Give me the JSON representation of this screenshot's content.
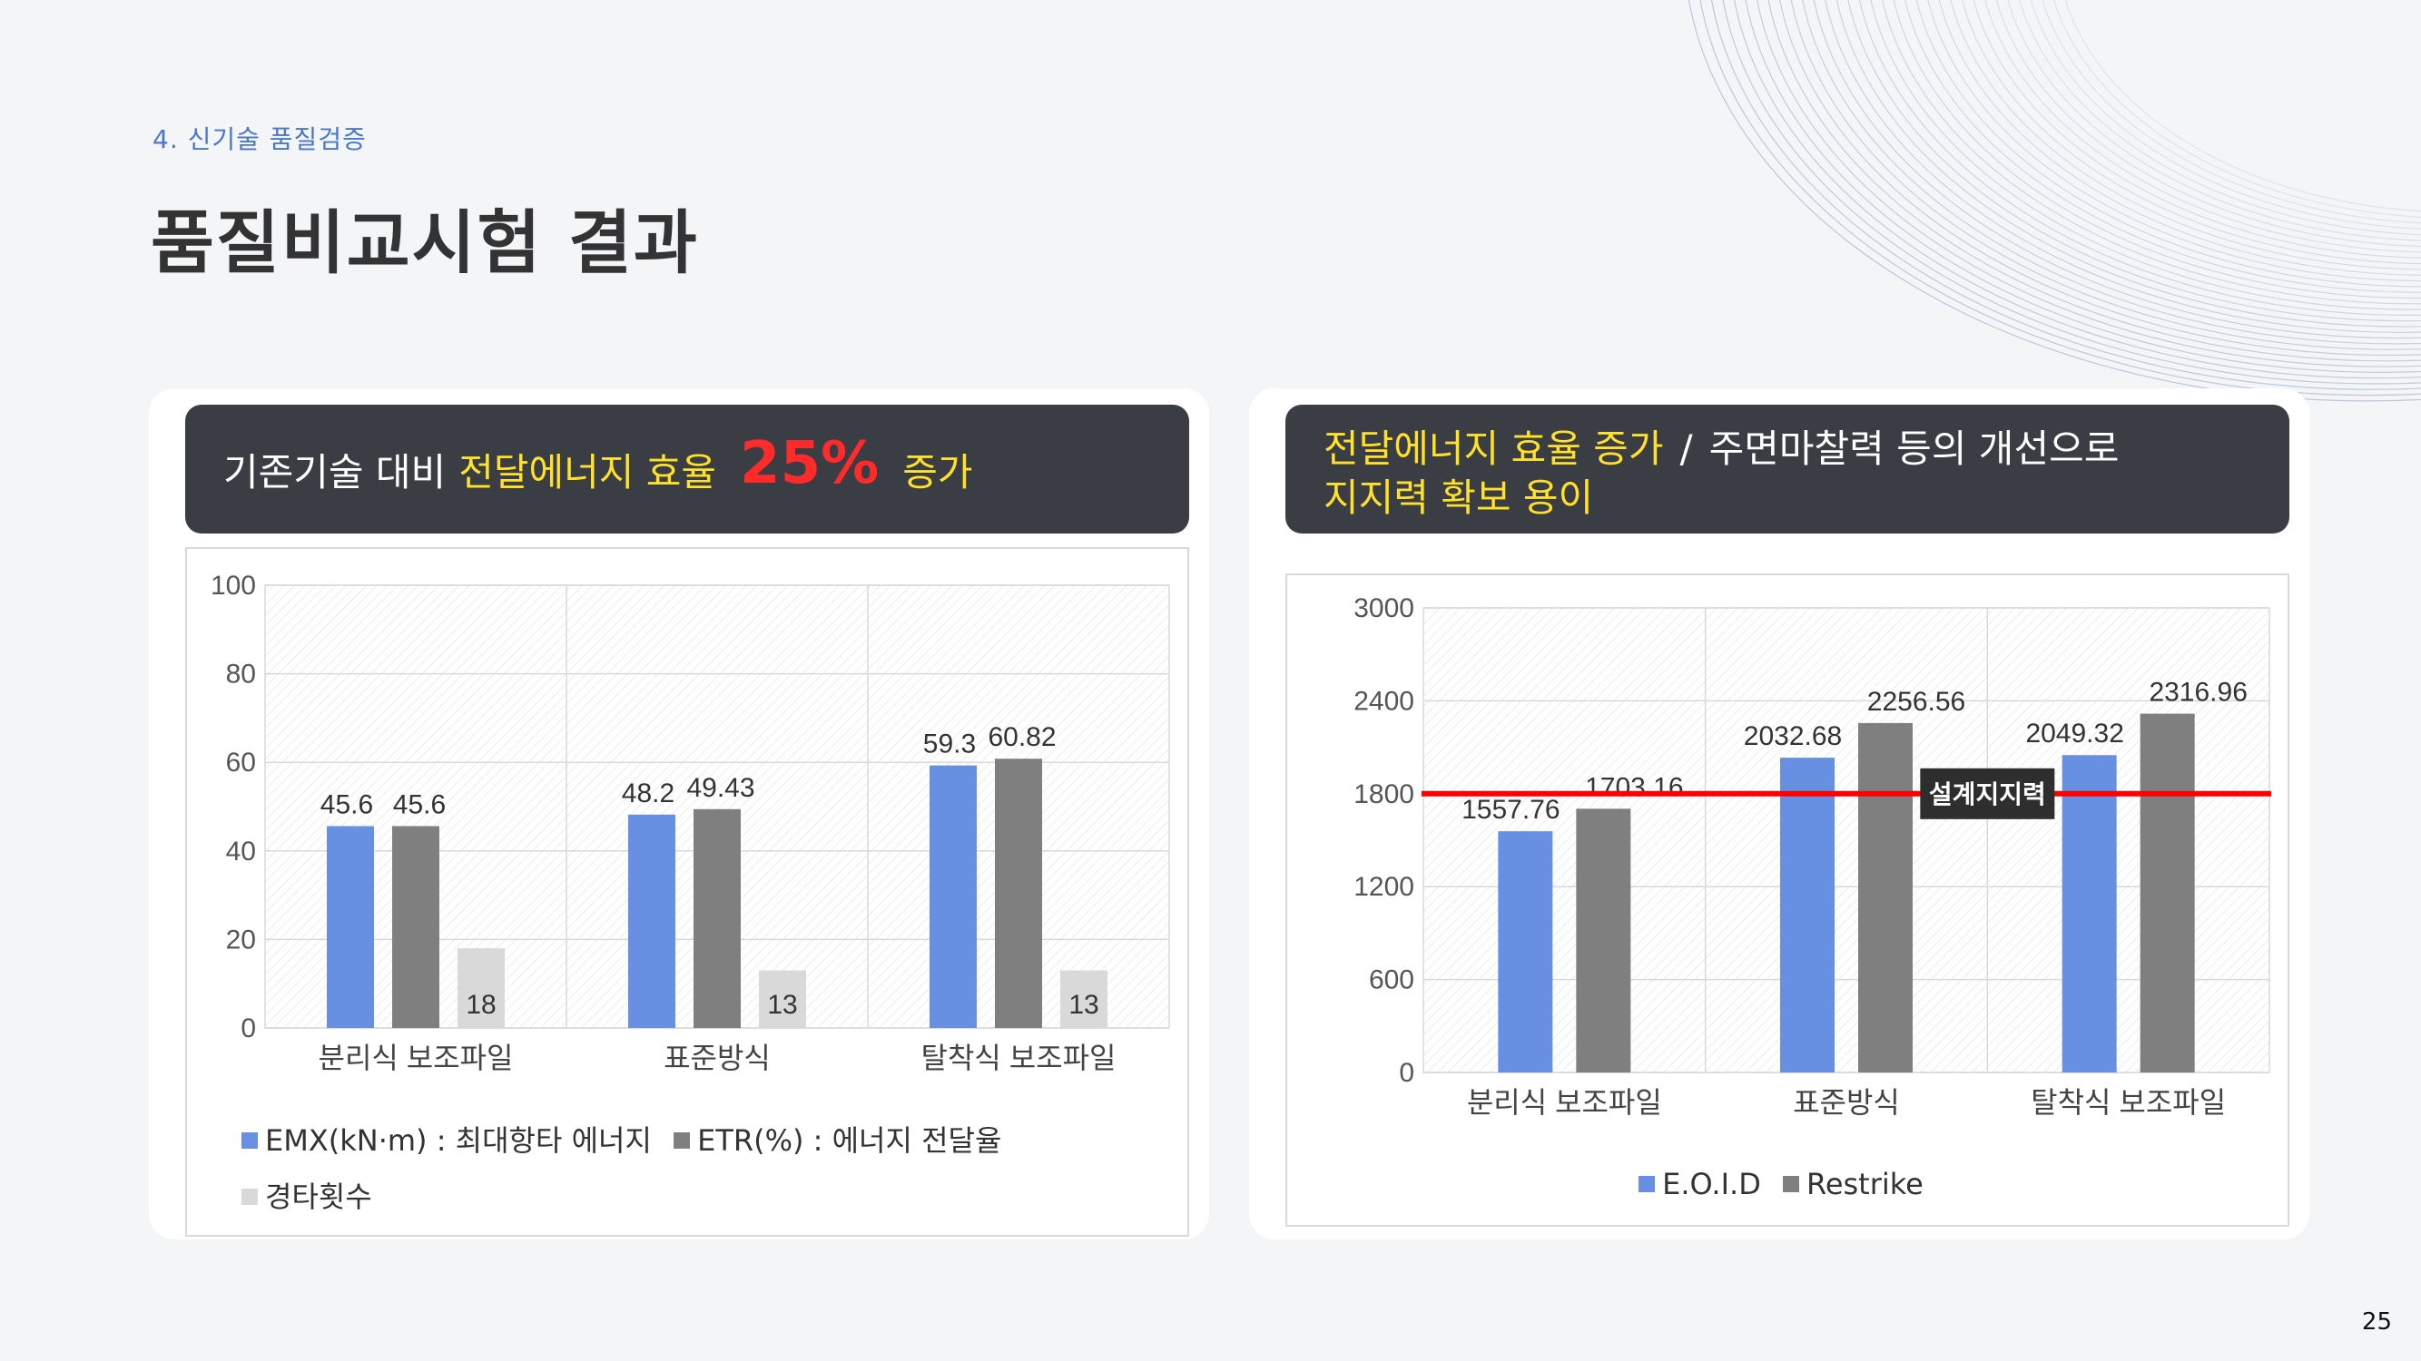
{
  "header": {
    "section": "4.  신기술 품질검증",
    "title": "품질비교시험 결과"
  },
  "page_number": "25",
  "left_card": {
    "banner": {
      "prefix": "기존기술 대비",
      "highlight": "전달에너지 효율",
      "big_value": "25%",
      "suffix": "증가"
    }
  },
  "right_card": {
    "banner": {
      "line1_highlight": "전달에너지 효율 증가",
      "separator": "/",
      "line1_rest": "주면마찰력 등의 개선으로",
      "line2_highlight": "지지력 확보 용이"
    }
  },
  "colors": {
    "blue": "#6790e2",
    "gray": "#7f7f7f",
    "light": "#d9d9d9",
    "red": "#ff0000",
    "banner_bg": "#3a3d44",
    "accent_yellow": "#ffe02a"
  },
  "chart_data": [
    {
      "type": "bar",
      "categories": [
        "분리식 보조파일",
        "표준방식",
        "탈착식 보조파일"
      ],
      "series": [
        {
          "name": "EMX(kN·m) :  최대항타 에너지",
          "values": [
            45.6,
            48.2,
            59.3
          ],
          "color": "#6790e2"
        },
        {
          "name": "ETR(%) :  에너지 전달율",
          "values": [
            45.6,
            49.43,
            60.82
          ],
          "color": "#7f7f7f"
        },
        {
          "name": "경타횟수",
          "values": [
            18,
            13,
            13
          ],
          "color": "#d9d9d9"
        }
      ],
      "data_labels": [
        [
          "45.6",
          "48.2",
          "59.3"
        ],
        [
          "45.6",
          "49.43",
          "60.82"
        ],
        [
          "18",
          "13",
          "13"
        ]
      ],
      "ylim": [
        0,
        100
      ],
      "yticks": [
        "0",
        "20",
        "40",
        "60",
        "80",
        "100"
      ],
      "grid": true,
      "legend": "bottom"
    },
    {
      "type": "bar",
      "categories": [
        "분리식 보조파일",
        "표준방식",
        "탈착식 보조파일"
      ],
      "series": [
        {
          "name": "E.O.I.D",
          "values": [
            1557.76,
            2032.68,
            2049.32
          ],
          "color": "#6790e2"
        },
        {
          "name": "Restrike",
          "values": [
            1703.16,
            2256.56,
            2316.96
          ],
          "color": "#7f7f7f"
        }
      ],
      "data_labels": [
        [
          "1557.76",
          "2032.68",
          "2049.32"
        ],
        [
          "1703.16",
          "2256.56",
          "2316.96"
        ]
      ],
      "ylim": [
        0,
        3000
      ],
      "yticks": [
        "0",
        "600",
        "1200",
        "1800",
        "2400",
        "3000"
      ],
      "reference_line": {
        "value": 1800,
        "label": "설계지지력",
        "color": "#ff0000"
      },
      "grid": true,
      "legend": "bottom"
    }
  ]
}
